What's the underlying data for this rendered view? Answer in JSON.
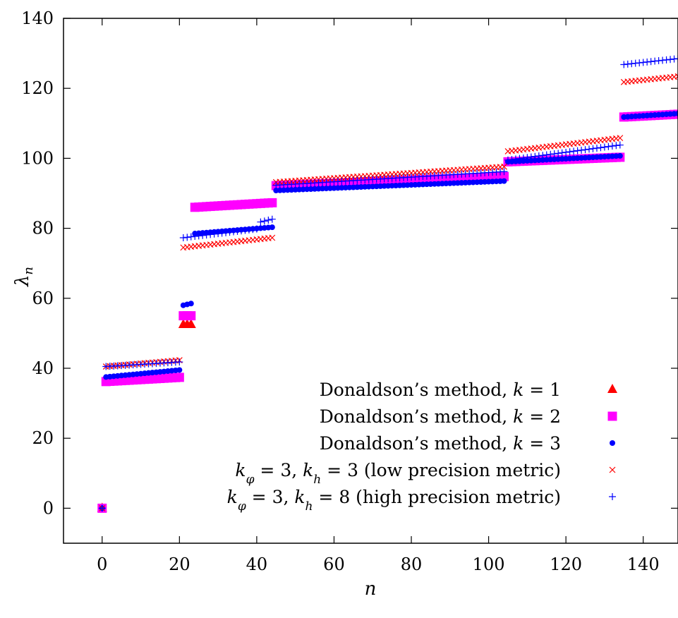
{
  "chart_data": {
    "type": "scatter",
    "xlabel": "n",
    "ylabel": "λ_n",
    "xlim": [
      -10,
      149
    ],
    "ylim": [
      -10,
      140
    ],
    "xticks": [
      0,
      20,
      40,
      60,
      80,
      100,
      120,
      140
    ],
    "yticks": [
      0,
      20,
      40,
      60,
      80,
      100,
      120,
      140
    ],
    "grid": false,
    "legend_position": "bottom-right",
    "series": [
      {
        "name": "Donaldson’s method, k = 1",
        "marker": "triangle",
        "color": "#ff0000",
        "segments": [
          {
            "n_start": 0,
            "n_end": 0,
            "v_start": 0,
            "v_end": 0
          },
          {
            "n_start": 21,
            "n_end": 23,
            "v_start": 52.5,
            "v_end": 52.5
          }
        ]
      },
      {
        "name": "Donaldson’s method, k = 2",
        "marker": "square",
        "color": "#ff00ff",
        "segments": [
          {
            "n_start": 0,
            "n_end": 0,
            "v_start": 0,
            "v_end": 0
          },
          {
            "n_start": 1,
            "n_end": 20,
            "v_start": 36.2,
            "v_end": 37.4
          },
          {
            "n_start": 21,
            "n_end": 23,
            "v_start": 55,
            "v_end": 55
          },
          {
            "n_start": 24,
            "n_end": 44,
            "v_start": 86,
            "v_end": 87.3
          },
          {
            "n_start": 45,
            "n_end": 104,
            "v_start": 92.2,
            "v_end": 94.8
          },
          {
            "n_start": 105,
            "n_end": 134,
            "v_start": 99,
            "v_end": 100.3
          },
          {
            "n_start": 135,
            "n_end": 149,
            "v_start": 111.8,
            "v_end": 112.6
          }
        ]
      },
      {
        "name": "Donaldson’s method, k = 3",
        "marker": "circle",
        "color": "#0000ff",
        "segments": [
          {
            "n_start": 0,
            "n_end": 0,
            "v_start": 0,
            "v_end": 0
          },
          {
            "n_start": 1,
            "n_end": 20,
            "v_start": 37.5,
            "v_end": 39.5
          },
          {
            "n_start": 21,
            "n_end": 23,
            "v_start": 58,
            "v_end": 58.5
          },
          {
            "n_start": 24,
            "n_end": 44,
            "v_start": 78.5,
            "v_end": 80.3
          },
          {
            "n_start": 45,
            "n_end": 104,
            "v_start": 90.8,
            "v_end": 93.5
          },
          {
            "n_start": 105,
            "n_end": 134,
            "v_start": 99,
            "v_end": 100.7
          },
          {
            "n_start": 135,
            "n_end": 149,
            "v_start": 111.8,
            "v_end": 112.8
          }
        ]
      },
      {
        "name": "k_φ = 3, k_h = 3 (low precision metric)",
        "marker": "x",
        "color": "#ff0000",
        "segments": [
          {
            "n_start": 0,
            "n_end": 0,
            "v_start": 0,
            "v_end": 0
          },
          {
            "n_start": 1,
            "n_end": 20,
            "v_start": 40.5,
            "v_end": 42.3
          },
          {
            "n_start": 21,
            "n_end": 44,
            "v_start": 74.5,
            "v_end": 77.3
          },
          {
            "n_start": 45,
            "n_end": 104,
            "v_start": 93.2,
            "v_end": 97.6
          },
          {
            "n_start": 105,
            "n_end": 134,
            "v_start": 102,
            "v_end": 105.8
          },
          {
            "n_start": 135,
            "n_end": 149,
            "v_start": 121.8,
            "v_end": 123.4
          }
        ]
      },
      {
        "name": "k_φ = 3, k_h = 8 (high precision metric)",
        "marker": "plus",
        "color": "#0000ff",
        "segments": [
          {
            "n_start": 0,
            "n_end": 0,
            "v_start": 0,
            "v_end": 0
          },
          {
            "n_start": 1,
            "n_end": 20,
            "v_start": 40.5,
            "v_end": 41.8
          },
          {
            "n_start": 21,
            "n_end": 40,
            "v_start": 77.3,
            "v_end": 79.8
          },
          {
            "n_start": 41,
            "n_end": 44,
            "v_start": 81.8,
            "v_end": 82.6
          },
          {
            "n_start": 45,
            "n_end": 104,
            "v_start": 92.3,
            "v_end": 96.2
          },
          {
            "n_start": 105,
            "n_end": 134,
            "v_start": 99.5,
            "v_end": 103.8
          },
          {
            "n_start": 135,
            "n_end": 149,
            "v_start": 126.8,
            "v_end": 128.5
          }
        ]
      }
    ]
  }
}
